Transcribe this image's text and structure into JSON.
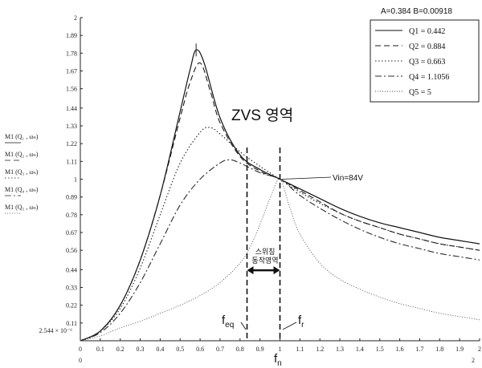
{
  "header": {
    "params_text": "A=0.384  B=0.00918"
  },
  "chart_data": {
    "type": "line",
    "xlim": [
      0,
      2
    ],
    "ylim": [
      0,
      2
    ],
    "x_ticks": [
      "0",
      "0.1",
      "0.2",
      "0.3",
      "0.4",
      "0.5",
      "0.6",
      "0.7",
      "0.8",
      "0.9",
      "1",
      "1.1",
      "1.2",
      "1.3",
      "1.4",
      "1.5",
      "1.6",
      "1.7",
      "1.8",
      "1.9",
      "2"
    ],
    "x_tick_values": [
      0,
      0.1,
      0.2,
      0.3,
      0.4,
      0.5,
      0.6,
      0.7,
      0.8,
      0.9,
      1,
      1.1,
      1.2,
      1.3,
      1.4,
      1.5,
      1.6,
      1.7,
      1.8,
      1.9,
      2
    ],
    "x_axis_start_label": "0",
    "x_axis_end_label": "2",
    "y_ticks": [
      "2",
      "1.89",
      "1.78",
      "1.67",
      "1.56",
      "1.44",
      "1.33",
      "1.22",
      "1.11",
      "1",
      "0.89",
      "0.78",
      "0.67",
      "0.56",
      "0.44",
      "0.33",
      "0.22",
      "0.11"
    ],
    "y_tick_values": [
      2,
      1.89,
      1.78,
      1.67,
      1.56,
      1.44,
      1.33,
      1.22,
      1.11,
      1,
      0.89,
      0.78,
      0.67,
      0.56,
      0.44,
      0.33,
      0.22,
      0.11
    ],
    "y_min_label": "2.544 × 10⁻⁶",
    "y_min_value": 2.5e-06,
    "ylabels": [
      "M1 (Q₁ , ωₙ)",
      "M1 (Q₂ , ωₙ)",
      "M1 (Q₃ , ωₙ)",
      "M1 (Q₄ , ωₙ)",
      "M1 (Q₅ , ωₙ)"
    ],
    "xlabel": "fₙ",
    "grid": false,
    "legend_position": "top-right",
    "series": [
      {
        "name": "Q1 = 0.442",
        "dash": "solid",
        "x": [
          0,
          0.1,
          0.2,
          0.3,
          0.4,
          0.5,
          0.55,
          0.58,
          0.62,
          0.7,
          0.8,
          0.9,
          1,
          1.1,
          1.2,
          1.3,
          1.4,
          1.5,
          1.6,
          1.7,
          1.8,
          1.9,
          2
        ],
        "y": [
          0,
          0.06,
          0.22,
          0.5,
          0.9,
          1.42,
          1.68,
          1.8,
          1.72,
          1.38,
          1.15,
          1.06,
          1,
          0.94,
          0.88,
          0.82,
          0.77,
          0.73,
          0.7,
          0.67,
          0.64,
          0.62,
          0.6
        ]
      },
      {
        "name": "Q2 = 0.884",
        "dash": "dashed",
        "x": [
          0,
          0.1,
          0.2,
          0.3,
          0.4,
          0.5,
          0.55,
          0.6,
          0.65,
          0.7,
          0.8,
          0.9,
          1,
          1.1,
          1.2,
          1.3,
          1.4,
          1.5,
          1.6,
          1.7,
          1.8,
          1.9,
          2
        ],
        "y": [
          0,
          0.06,
          0.22,
          0.5,
          0.9,
          1.38,
          1.6,
          1.72,
          1.55,
          1.35,
          1.14,
          1.05,
          1,
          0.93,
          0.86,
          0.79,
          0.74,
          0.7,
          0.66,
          0.63,
          0.6,
          0.58,
          0.56
        ]
      },
      {
        "name": "Q3 = 0.663",
        "dash": "dotted",
        "x": [
          0,
          0.1,
          0.2,
          0.3,
          0.4,
          0.5,
          0.6,
          0.65,
          0.7,
          0.8,
          0.9,
          1,
          1.1,
          1.2,
          1.3,
          1.4,
          1.5,
          1.6,
          1.7,
          1.8,
          1.9,
          2
        ],
        "y": [
          0,
          0.06,
          0.2,
          0.45,
          0.78,
          1.1,
          1.29,
          1.32,
          1.28,
          1.17,
          1.08,
          1,
          0.92,
          0.85,
          0.79,
          0.74,
          0.7,
          0.66,
          0.63,
          0.6,
          0.58,
          0.56
        ]
      },
      {
        "name": "Q4 = 1.1056",
        "dash": "dashdot",
        "x": [
          0,
          0.1,
          0.2,
          0.3,
          0.4,
          0.5,
          0.6,
          0.7,
          0.75,
          0.8,
          0.9,
          1,
          1.1,
          1.2,
          1.3,
          1.4,
          1.5,
          1.6,
          1.7,
          1.8,
          1.9,
          2
        ],
        "y": [
          0,
          0.05,
          0.17,
          0.36,
          0.6,
          0.84,
          1.0,
          1.1,
          1.12,
          1.1,
          1.04,
          1,
          0.9,
          0.82,
          0.75,
          0.69,
          0.64,
          0.6,
          0.57,
          0.54,
          0.52,
          0.5
        ]
      },
      {
        "name": "Q5 = 5",
        "dash": "dotted-fine",
        "x": [
          0,
          0.1,
          0.2,
          0.3,
          0.4,
          0.5,
          0.6,
          0.7,
          0.8,
          0.85,
          0.9,
          0.95,
          1,
          1.05,
          1.1,
          1.2,
          1.3,
          1.4,
          1.5,
          1.6,
          1.7,
          1.8,
          1.9,
          2
        ],
        "y": [
          0,
          0.03,
          0.08,
          0.12,
          0.17,
          0.22,
          0.28,
          0.36,
          0.48,
          0.58,
          0.72,
          0.88,
          1,
          0.82,
          0.66,
          0.48,
          0.38,
          0.32,
          0.27,
          0.23,
          0.2,
          0.17,
          0.15,
          0.13
        ]
      }
    ],
    "vertical_markers": [
      {
        "x": 0.835,
        "label": "f_eq"
      },
      {
        "x": 1.0,
        "label": "f_r"
      }
    ],
    "annotations": {
      "zvs_region": "ZVS 영역",
      "vin_label": "Vin=84V",
      "vin_point": {
        "x": 1.0,
        "y": 1.0
      },
      "switching_line1": "스위칭",
      "switching_line2": "동작영역",
      "switching_y": 0.56,
      "feq_base": "f",
      "feq_sub": "eq",
      "fr_base": "f",
      "fr_sub": "r",
      "xlabel_base": "f",
      "xlabel_sub": "n"
    }
  }
}
